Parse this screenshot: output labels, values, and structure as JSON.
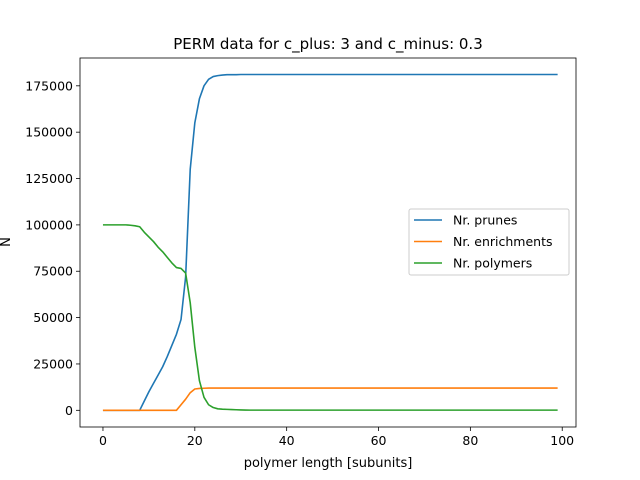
{
  "chart_data": {
    "type": "line",
    "title": "PERM data for c_plus: 3 and c_minus: 0.3",
    "xlabel": "polymer length [subunits]",
    "ylabel": "N",
    "xlim": [
      -5,
      103
    ],
    "ylim": [
      -9000,
      190000
    ],
    "xticks": [
      0,
      20,
      40,
      60,
      80,
      100
    ],
    "yticks": [
      0,
      25000,
      50000,
      75000,
      100000,
      125000,
      150000,
      175000
    ],
    "grid": false,
    "legend": "center-right",
    "x": [
      0,
      1,
      2,
      3,
      4,
      5,
      6,
      7,
      8,
      9,
      10,
      11,
      12,
      13,
      14,
      15,
      16,
      17,
      18,
      19,
      20,
      21,
      22,
      23,
      24,
      25,
      26,
      27,
      28,
      29,
      30,
      31,
      32,
      33,
      34,
      35,
      36,
      37,
      38,
      39,
      40,
      42,
      44,
      46,
      48,
      50,
      55,
      60,
      65,
      70,
      75,
      80,
      85,
      90,
      95,
      99
    ],
    "series": [
      {
        "name": "Nr. prunes",
        "color": "#1f77b4",
        "values": [
          0,
          0,
          0,
          0,
          0,
          0,
          0,
          0,
          0,
          5000,
          10000,
          14500,
          19000,
          23500,
          29000,
          35000,
          41000,
          49000,
          72000,
          130000,
          155000,
          168000,
          175000,
          178500,
          180000,
          180500,
          180800,
          181000,
          181000,
          181000,
          181100,
          181100,
          181100,
          181100,
          181100,
          181100,
          181100,
          181100,
          181100,
          181100,
          181100,
          181100,
          181100,
          181100,
          181100,
          181100,
          181100,
          181100,
          181100,
          181100,
          181100,
          181100,
          181100,
          181100,
          181100,
          181100
        ]
      },
      {
        "name": "Nr. enrichments",
        "color": "#ff7f0e",
        "values": [
          0,
          0,
          0,
          0,
          0,
          0,
          0,
          0,
          0,
          0,
          0,
          0,
          0,
          0,
          0,
          0,
          0,
          3000,
          6000,
          9500,
          11500,
          11800,
          11900,
          12000,
          12000,
          12000,
          12000,
          12000,
          12000,
          12000,
          12000,
          12000,
          12000,
          12000,
          12000,
          12000,
          12000,
          12000,
          12000,
          12000,
          12000,
          12000,
          12000,
          12000,
          12000,
          12000,
          12000,
          12000,
          12000,
          12000,
          12000,
          12000,
          12000,
          12000,
          12000,
          12000
        ]
      },
      {
        "name": "Nr. polymers",
        "color": "#2ca02c",
        "values": [
          100000,
          100000,
          100000,
          100000,
          100000,
          100000,
          99800,
          99500,
          99000,
          96000,
          93500,
          91000,
          88000,
          85500,
          82500,
          79500,
          77000,
          76500,
          74000,
          58000,
          34000,
          16000,
          7000,
          3000,
          1500,
          800,
          600,
          500,
          400,
          300,
          200,
          150,
          100,
          100,
          100,
          100,
          100,
          100,
          100,
          100,
          100,
          100,
          100,
          100,
          100,
          100,
          100,
          100,
          100,
          100,
          100,
          100,
          100,
          100,
          100,
          100
        ]
      }
    ]
  }
}
